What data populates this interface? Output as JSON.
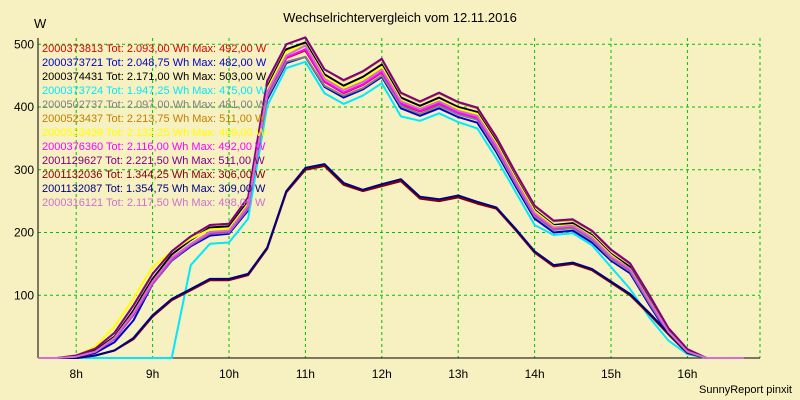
{
  "chart_data": {
    "type": "line",
    "title": "Wechselrichtervergleich vom 12.11.2016",
    "ylabel": "W",
    "xlabel": "",
    "footer": "SunnyReport pinxit",
    "ylim": [
      0,
      510
    ],
    "xlim": [
      7.5,
      16.95
    ],
    "grid": true,
    "legend_position": "top-left",
    "yticks": [
      100,
      200,
      300,
      400,
      500
    ],
    "xticks": [
      {
        "value": 8,
        "label": "8h"
      },
      {
        "value": 9,
        "label": "9h"
      },
      {
        "value": 10,
        "label": "10h"
      },
      {
        "value": 11,
        "label": "11h"
      },
      {
        "value": 12,
        "label": "12h"
      },
      {
        "value": 13,
        "label": "13h"
      },
      {
        "value": 14,
        "label": "14h"
      },
      {
        "value": 15,
        "label": "15h"
      },
      {
        "value": 16,
        "label": "16h"
      }
    ],
    "x": [
      7.5,
      7.75,
      8.0,
      8.25,
      8.5,
      8.75,
      9.0,
      9.25,
      9.5,
      9.75,
      10.0,
      10.25,
      10.5,
      10.75,
      11.0,
      11.25,
      11.5,
      11.75,
      12.0,
      12.25,
      12.5,
      12.75,
      13.0,
      13.25,
      13.5,
      13.75,
      14.0,
      14.25,
      14.5,
      14.75,
      15.0,
      15.25,
      15.5,
      15.75,
      16.0,
      16.25,
      16.5,
      16.75
    ],
    "series": [
      {
        "name": "2000373813",
        "legend": "2000373813 Tot: 2.093,00 Wh Max: 492,00 W",
        "color": "#dd0000",
        "values": [
          0,
          0,
          2,
          10,
          30,
          70,
          120,
          158,
          180,
          200,
          202,
          240,
          420,
          478,
          490,
          440,
          422,
          435,
          455,
          405,
          393,
          405,
          390,
          382,
          335,
          280,
          228,
          206,
          209,
          190,
          160,
          140,
          90,
          40,
          10,
          0,
          0,
          0
        ]
      },
      {
        "name": "2000373721",
        "legend": "2000373721 Tot: 2.048,75 Wh Max: 482,00 W",
        "color": "#0000cc",
        "values": [
          0,
          0,
          2,
          8,
          25,
          60,
          118,
          155,
          178,
          195,
          198,
          235,
          412,
          470,
          480,
          432,
          415,
          428,
          448,
          398,
          386,
          398,
          384,
          375,
          328,
          274,
          222,
          200,
          203,
          184,
          155,
          135,
          85,
          38,
          8,
          0,
          0,
          0
        ]
      },
      {
        "name": "2000374431",
        "legend": "2000374431 Tot: 2.171,00 Wh Max: 503,00 W",
        "color": "#000000",
        "values": [
          0,
          0,
          3,
          12,
          34,
          76,
          126,
          165,
          188,
          208,
          210,
          250,
          432,
          492,
          503,
          452,
          434,
          448,
          468,
          415,
          402,
          415,
          400,
          392,
          345,
          288,
          236,
          212,
          215,
          196,
          166,
          145,
          95,
          44,
          12,
          0,
          0,
          0
        ]
      },
      {
        "name": "2000373724",
        "legend": "2000373724 Tot: 1.947,25 Wh Max: 475,00 W",
        "color": "#00e8ff",
        "values": [
          0,
          0,
          0,
          0,
          0,
          0,
          0,
          0,
          148,
          182,
          184,
          222,
          402,
          462,
          472,
          422,
          405,
          418,
          438,
          385,
          378,
          390,
          376,
          366,
          318,
          265,
          212,
          196,
          199,
          180,
          145,
          110,
          65,
          28,
          6,
          0,
          0,
          0
        ]
      },
      {
        "name": "2000502737",
        "legend": "2000502737 Tot: 2.097,00 Wh Max: 481,00 W",
        "color": "#808080",
        "values": [
          0,
          0,
          2,
          10,
          30,
          68,
          118,
          156,
          180,
          198,
          200,
          238,
          416,
          472,
          480,
          434,
          418,
          430,
          450,
          402,
          389,
          402,
          388,
          380,
          332,
          278,
          226,
          204,
          207,
          188,
          158,
          138,
          88,
          40,
          9,
          0,
          0,
          0
        ]
      },
      {
        "name": "2000523437",
        "legend": "2000523437 Tot: 2.213,75 Wh Max: 511,00 W",
        "color": "#c08000",
        "values": [
          0,
          0,
          4,
          15,
          40,
          84,
          134,
          170,
          193,
          212,
          214,
          255,
          440,
          500,
          511,
          460,
          442,
          456,
          476,
          422,
          408,
          422,
          407,
          398,
          351,
          295,
          242,
          218,
          220,
          202,
          172,
          150,
          100,
          48,
          14,
          0,
          0,
          0
        ]
      },
      {
        "name": "2000523439",
        "legend": "2000523439 Tot: 2.132,25 Wh Max: 499,00 W",
        "color": "#ffff00",
        "values": [
          0,
          0,
          4,
          18,
          50,
          95,
          145,
          170,
          190,
          205,
          206,
          246,
          428,
          488,
          499,
          448,
          430,
          444,
          464,
          411,
          398,
          411,
          397,
          389,
          342,
          286,
          234,
          210,
          212,
          194,
          164,
          142,
          92,
          42,
          11,
          0,
          0,
          0
        ]
      },
      {
        "name": "2000376360",
        "legend": "2000376360 Tot: 2.116,00 Wh Max: 492,00 W",
        "color": "#ff00ff",
        "values": [
          0,
          0,
          2,
          10,
          31,
          70,
          120,
          158,
          181,
          200,
          202,
          241,
          421,
          479,
          492,
          441,
          423,
          436,
          456,
          406,
          394,
          406,
          391,
          383,
          336,
          281,
          229,
          207,
          210,
          191,
          161,
          141,
          91,
          41,
          10,
          0,
          0,
          0
        ]
      },
      {
        "name": "2001129627",
        "legend": "2001129627 Tot: 2.221,50 Wh Max: 511,00 W",
        "color": "#800080",
        "values": [
          0,
          0,
          4,
          15,
          40,
          84,
          134,
          170,
          194,
          212,
          214,
          256,
          442,
          500,
          511,
          460,
          443,
          457,
          477,
          423,
          409,
          423,
          408,
          399,
          352,
          296,
          243,
          219,
          221,
          203,
          173,
          151,
          101,
          48,
          14,
          0,
          0,
          0
        ]
      },
      {
        "name": "2001132036",
        "legend": "2001132036 Tot: 1.344,25 Wh Max: 306,00 W",
        "color": "#800000",
        "values": [
          0,
          0,
          0,
          4,
          12,
          30,
          66,
          92,
          108,
          124,
          124,
          132,
          174,
          264,
          300,
          306,
          276,
          266,
          274,
          282,
          254,
          250,
          256,
          246,
          238,
          204,
          168,
          146,
          150,
          140,
          120,
          100,
          70,
          38,
          8,
          0,
          0,
          0
        ]
      },
      {
        "name": "2001132087",
        "legend": "2001132087 Tot: 1.354,75 Wh Max: 309,00 W",
        "color": "#000080",
        "values": [
          0,
          0,
          0,
          4,
          12,
          32,
          68,
          94,
          110,
          126,
          126,
          134,
          176,
          266,
          303,
          309,
          279,
          268,
          277,
          285,
          257,
          253,
          259,
          249,
          240,
          206,
          170,
          148,
          152,
          142,
          122,
          102,
          72,
          40,
          9,
          0,
          0,
          0
        ]
      },
      {
        "name": "2000316121",
        "legend": "2000316121 Tot: 2.117,50 Wh Max: 498,00 W",
        "color": "#d070d0",
        "values": [
          0,
          0,
          2,
          10,
          32,
          72,
          122,
          160,
          182,
          201,
          203,
          243,
          424,
          482,
          498,
          445,
          427,
          440,
          460,
          409,
          397,
          409,
          394,
          386,
          339,
          283,
          231,
          208,
          211,
          192,
          162,
          142,
          92,
          42,
          10,
          0,
          0,
          0
        ]
      }
    ]
  }
}
